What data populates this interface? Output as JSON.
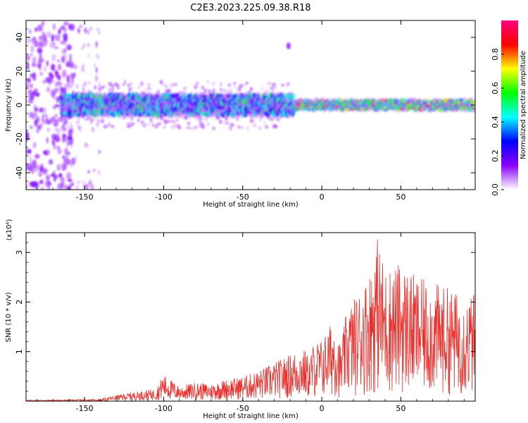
{
  "figure": {
    "title": "C2E3.2023.225.09.38.R18"
  },
  "colors": {
    "snr_line": "#e8322e",
    "axis": "#000000",
    "background": "#ffffff"
  },
  "chart_data": [
    {
      "type": "heatmap",
      "xlabel": "Height of straight line (km)",
      "ylabel": "Frequency (Hz)",
      "xlim": [
        -187,
        97
      ],
      "ylim": [
        -50,
        50
      ],
      "xticks": [
        -150,
        -100,
        -50,
        0,
        50
      ],
      "xtick_labels": [
        "-150",
        "-100",
        "-50",
        "0",
        "50"
      ],
      "yticks": [
        -40,
        -20,
        0,
        20,
        40
      ],
      "ytick_labels": [
        "-40",
        "-20",
        "0",
        "20",
        "40"
      ],
      "colormap": [
        "#ffffff",
        "#8a00ff",
        "#0000ff",
        "#00ffff",
        "#00ff00",
        "#ffff00",
        "#ff0000",
        "#ff0080"
      ],
      "colorbar": {
        "label": "Normalized spectral amplitude",
        "range": [
          0,
          1
        ],
        "ticks": [
          0.0,
          0.2,
          0.4,
          0.6,
          0.8
        ],
        "tick_labels": [
          "0.0",
          "0.2",
          "0.4",
          "0.6",
          "0.8"
        ]
      },
      "band": {
        "center_hz": 0,
        "halfwidth_hz_left": 6,
        "halfwidth_hz_right": 3,
        "transition_km": -18,
        "start_km": -165,
        "notes_levels": {
          "left": 0.45,
          "right": 0.6
        }
      }
    },
    {
      "type": "line",
      "xlabel": "Height of straight line (km)",
      "ylabel": "SNR (10 * v/v)",
      "y_multiplier": "(x10⁴)",
      "xlim": [
        -187,
        97
      ],
      "ylim": [
        0,
        3.4
      ],
      "xticks": [
        -150,
        -100,
        -50,
        0,
        50
      ],
      "xtick_labels": [
        "-150",
        "-100",
        "-50",
        "0",
        "50"
      ],
      "yticks": [
        1,
        2,
        3
      ],
      "ytick_labels": [
        "1",
        "2",
        "3"
      ],
      "series": [
        {
          "envelope": [
            [
              -187,
              0.02
            ],
            [
              -140,
              0.04
            ],
            [
              -130,
              0.12
            ],
            [
              -120,
              0.18
            ],
            [
              -105,
              0.25
            ],
            [
              -100,
              0.55
            ],
            [
              -90,
              0.3
            ],
            [
              -80,
              0.38
            ],
            [
              -70,
              0.35
            ],
            [
              -60,
              0.45
            ],
            [
              -50,
              0.5
            ],
            [
              -40,
              0.62
            ],
            [
              -30,
              0.78
            ],
            [
              -20,
              0.95
            ],
            [
              -12,
              1.1
            ],
            [
              -8,
              0.9
            ],
            [
              -5,
              1.2
            ],
            [
              0,
              1.25
            ],
            [
              8,
              1.7
            ],
            [
              12,
              1.1
            ],
            [
              16,
              1.9
            ],
            [
              22,
              2.15
            ],
            [
              30,
              2.6
            ],
            [
              35,
              3.35
            ],
            [
              40,
              2.7
            ],
            [
              50,
              2.8
            ],
            [
              60,
              2.5
            ],
            [
              70,
              2.4
            ],
            [
              80,
              2.3
            ],
            [
              90,
              2.1
            ],
            [
              97,
              2.2
            ]
          ]
        }
      ]
    }
  ]
}
